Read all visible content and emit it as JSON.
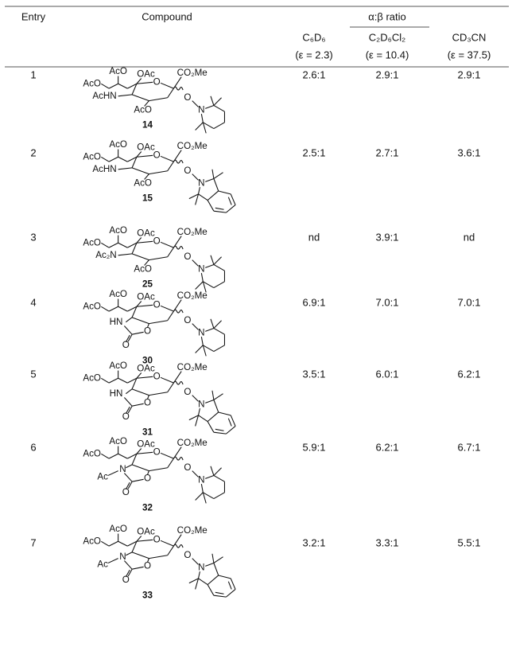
{
  "header": {
    "entry": "Entry",
    "compound": "Compound",
    "ratio": "α:β ratio",
    "solvents": [
      {
        "name": "C₆D₆",
        "epsilon": "(ε = 2.3)"
      },
      {
        "name": "C₂D₆Cl₂",
        "epsilon": "(ε = 10.4)"
      },
      {
        "name": "CD₃CN",
        "epsilon": "(ε = 37.5)"
      }
    ]
  },
  "rows": [
    {
      "entry": "1",
      "compound": "14",
      "structure": [
        "AcO",
        "AcO",
        "OAc",
        "CO₂Me",
        "AcHN",
        "AcO",
        "O",
        "O",
        "N"
      ],
      "ratios": [
        "2.6:1",
        "2.9:1",
        "2.9:1"
      ]
    },
    {
      "entry": "2",
      "compound": "15",
      "structure": [
        "AcO",
        "AcO",
        "OAc",
        "CO₂Me",
        "AcHN",
        "AcO",
        "O",
        "O",
        "N"
      ],
      "ratios": [
        "2.5:1",
        "2.7:1",
        "3.6:1"
      ]
    },
    {
      "entry": "3",
      "compound": "25",
      "structure": [
        "AcO",
        "AcO",
        "OAc",
        "CO₂Me",
        "Ac₂N",
        "AcO",
        "O",
        "O",
        "N"
      ],
      "ratios": [
        "nd",
        "3.9:1",
        "nd"
      ]
    },
    {
      "entry": "4",
      "compound": "30",
      "structure": [
        "AcO",
        "AcO",
        "OAc",
        "CO₂Me",
        "HN",
        "O",
        "O",
        "O",
        "O",
        "N"
      ],
      "ratios": [
        "6.9:1",
        "7.0:1",
        "7.0:1"
      ]
    },
    {
      "entry": "5",
      "compound": "31",
      "structure": [
        "AcO",
        "AcO",
        "OAc",
        "CO₂Me",
        "HN",
        "O",
        "O",
        "O",
        "O",
        "N"
      ],
      "ratios": [
        "3.5:1",
        "6.0:1",
        "6.2:1"
      ]
    },
    {
      "entry": "6",
      "compound": "32",
      "structure": [
        "AcO",
        "AcO",
        "OAc",
        "CO₂Me",
        "Ac",
        "N",
        "O",
        "O",
        "O",
        "O",
        "N"
      ],
      "ratios": [
        "5.9:1",
        "6.2:1",
        "6.7:1"
      ]
    },
    {
      "entry": "7",
      "compound": "33",
      "structure": [
        "AcO",
        "AcO",
        "OAc",
        "CO₂Me",
        "Ac",
        "N",
        "O",
        "O",
        "O",
        "O",
        "N"
      ],
      "ratios": [
        "3.2:1",
        "3.3:1",
        "5.5:1"
      ]
    }
  ]
}
